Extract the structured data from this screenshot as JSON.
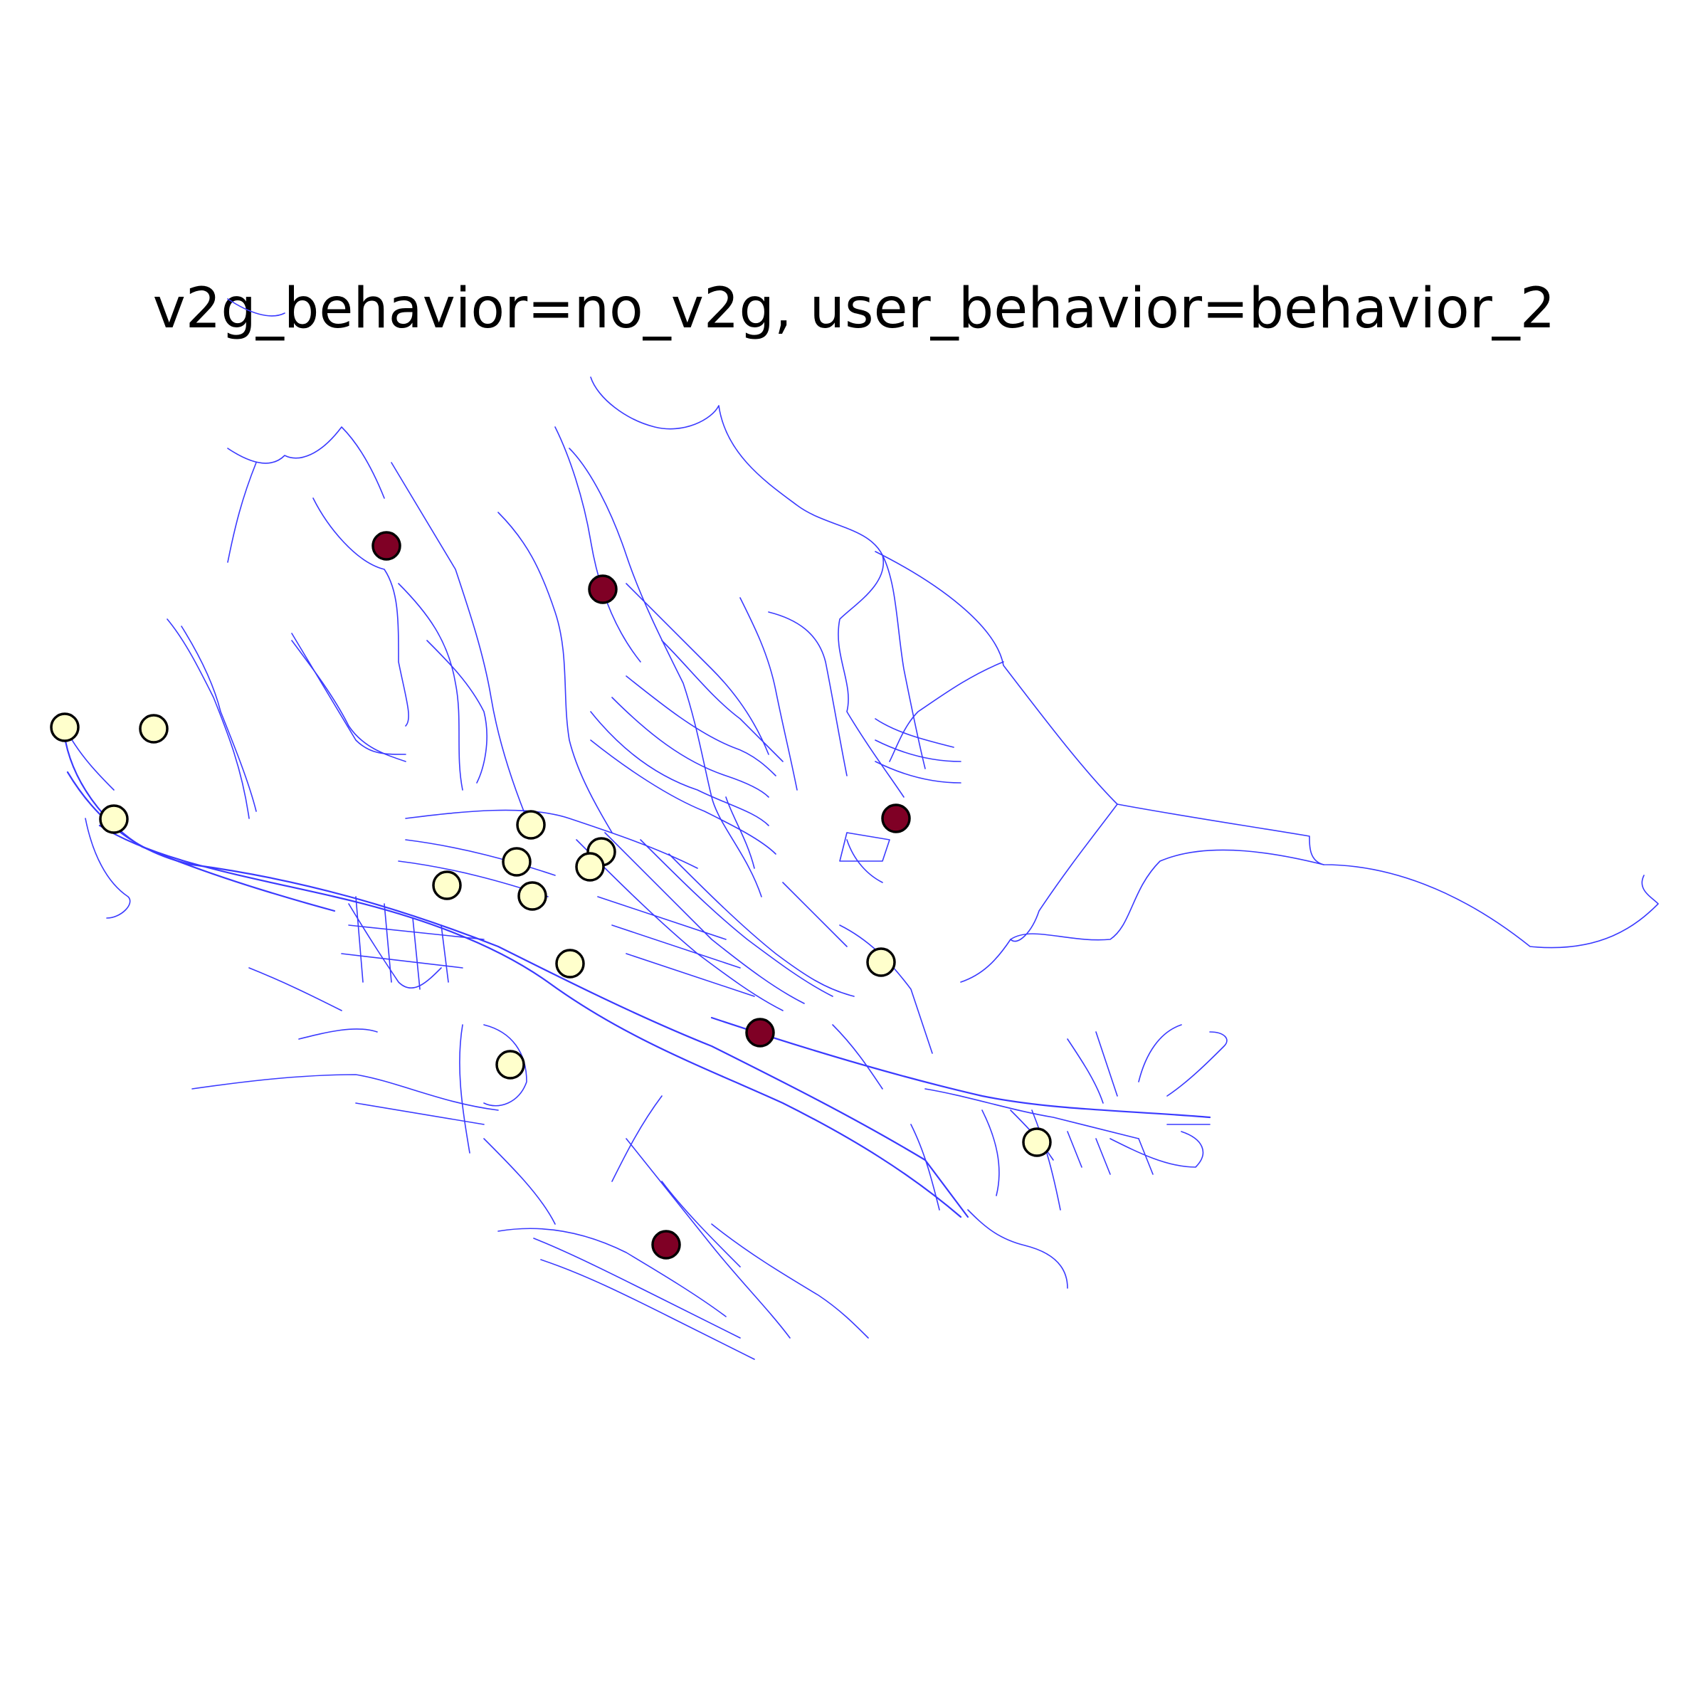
{
  "title": "v2g_behavior=no_v2g, user_behavior=behavior_2",
  "colors": {
    "road": "#3a3aff",
    "station_high": "#7f0025",
    "station_low": "#ffffcc",
    "station_outline": "#000000",
    "background": "#ffffff"
  },
  "legend": null,
  "stations": [
    {
      "id": "s1",
      "level": "high"
    },
    {
      "id": "s2",
      "level": "high"
    },
    {
      "id": "s3",
      "level": "low"
    },
    {
      "id": "s4",
      "level": "low"
    },
    {
      "id": "s5",
      "level": "low"
    },
    {
      "id": "s6",
      "level": "low"
    },
    {
      "id": "s7",
      "level": "low"
    },
    {
      "id": "s8",
      "level": "low"
    },
    {
      "id": "s9",
      "level": "low"
    },
    {
      "id": "s10",
      "level": "low"
    },
    {
      "id": "s11",
      "level": "low"
    },
    {
      "id": "s12",
      "level": "high"
    },
    {
      "id": "s13",
      "level": "low"
    },
    {
      "id": "s14",
      "level": "high"
    },
    {
      "id": "s15",
      "level": "low"
    },
    {
      "id": "s16",
      "level": "low"
    },
    {
      "id": "s17",
      "level": "high"
    },
    {
      "id": "s18",
      "level": "low"
    }
  ]
}
